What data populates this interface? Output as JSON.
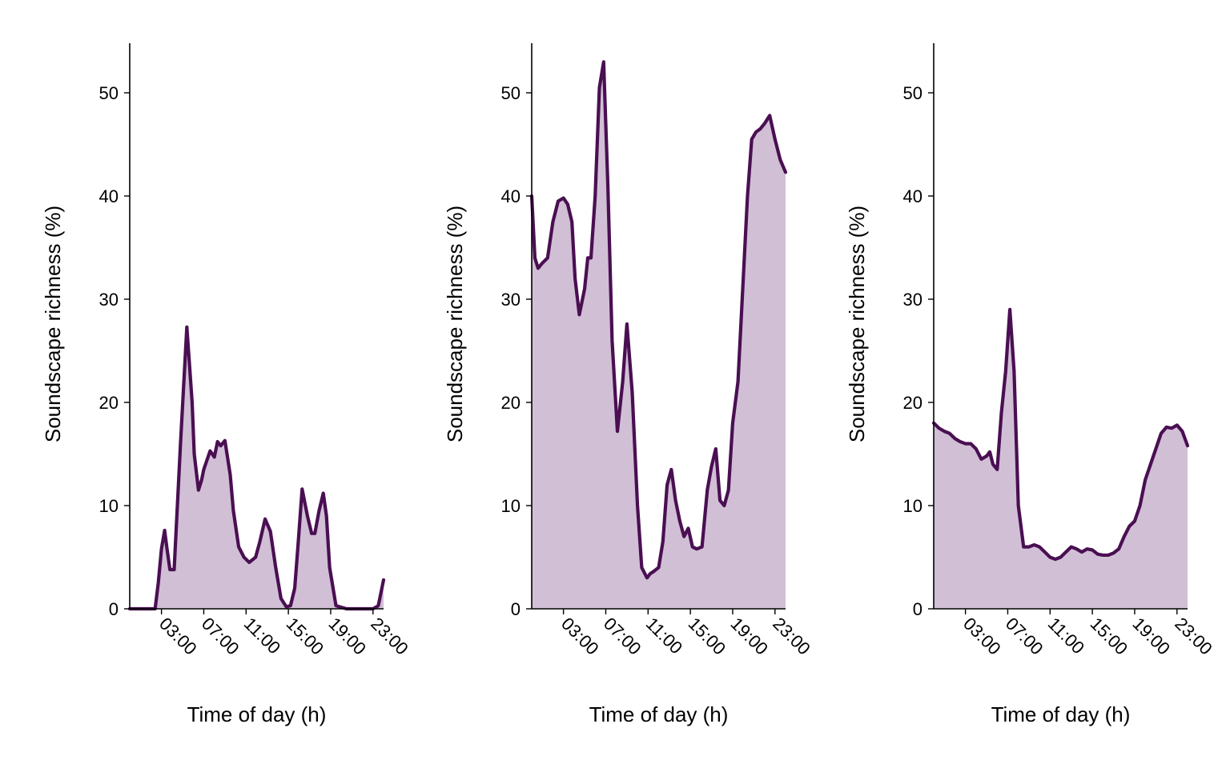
{
  "colors": {
    "line": "#4a0f52",
    "fill": "#d1bfd6",
    "axis": "#000000",
    "background": "#ffffff"
  },
  "chart_data": [
    {
      "type": "area",
      "xlabel": "Time of day (h)",
      "ylabel": "Soundscape richness (%)",
      "x_unit": "hours",
      "xlim": [
        0,
        24
      ],
      "ylim": [
        0,
        55
      ],
      "x_ticks": [
        {
          "value": 3,
          "label": "03:00"
        },
        {
          "value": 7,
          "label": "07:00"
        },
        {
          "value": 11,
          "label": "11:00"
        },
        {
          "value": 15,
          "label": "15:00"
        },
        {
          "value": 19,
          "label": "19:00"
        },
        {
          "value": 23,
          "label": "23:00"
        }
      ],
      "y_ticks": [
        0,
        10,
        20,
        30,
        40,
        50
      ],
      "x": [
        0,
        1,
        2.4,
        2.7,
        3.0,
        3.3,
        3.5,
        3.8,
        4.2,
        4.8,
        5.4,
        5.9,
        6.1,
        6.5,
        6.8,
        7.0,
        7.6,
        8.0,
        8.3,
        8.6,
        9.0,
        9.5,
        9.8,
        10.3,
        10.8,
        11.3,
        11.9,
        12.3,
        12.8,
        13.3,
        13.8,
        14.3,
        14.8,
        15.2,
        15.6,
        15.9,
        16.3,
        16.8,
        17.2,
        17.5,
        17.9,
        18.3,
        18.6,
        18.9,
        19.5,
        20.5,
        21.5,
        22.5,
        23.0,
        23.5,
        24.0
      ],
      "values": [
        0,
        0,
        0,
        2.5,
        5.8,
        7.6,
        6.0,
        3.8,
        3.8,
        16.0,
        27.3,
        20.0,
        15.0,
        11.5,
        12.5,
        13.5,
        15.3,
        14.7,
        16.2,
        15.8,
        16.3,
        13.0,
        9.5,
        6.0,
        5.0,
        4.5,
        5.0,
        6.5,
        8.7,
        7.5,
        4.0,
        1.0,
        0.2,
        0.3,
        2.0,
        6.0,
        11.6,
        9.0,
        7.3,
        7.3,
        9.5,
        11.2,
        9.0,
        4.0,
        0.3,
        0,
        0,
        0,
        0,
        0.3,
        2.8
      ]
    },
    {
      "type": "area",
      "xlabel": "Time of day (h)",
      "ylabel": "Soundscape richness (%)",
      "x_unit": "hours",
      "xlim": [
        0,
        24
      ],
      "ylim": [
        0,
        55
      ],
      "x_ticks": [
        {
          "value": 3,
          "label": "03:00"
        },
        {
          "value": 7,
          "label": "07:00"
        },
        {
          "value": 11,
          "label": "11:00"
        },
        {
          "value": 15,
          "label": "15:00"
        },
        {
          "value": 19,
          "label": "19:00"
        },
        {
          "value": 23,
          "label": "23:00"
        }
      ],
      "y_ticks": [
        0,
        10,
        20,
        30,
        40,
        50
      ],
      "x": [
        0,
        0.3,
        0.6,
        1.0,
        1.5,
        2.0,
        2.5,
        3.0,
        3.4,
        3.8,
        4.1,
        4.5,
        5.0,
        5.3,
        5.6,
        6.0,
        6.4,
        6.8,
        7.2,
        7.6,
        8.1,
        8.6,
        9.0,
        9.5,
        10.0,
        10.4,
        10.9,
        11.2,
        11.5,
        12.0,
        12.4,
        12.8,
        13.2,
        13.6,
        14.0,
        14.4,
        14.8,
        15.2,
        15.6,
        16.1,
        16.6,
        17.0,
        17.4,
        17.8,
        18.2,
        18.6,
        19.0,
        19.5,
        20.0,
        20.4,
        20.8,
        21.2,
        21.6,
        22.0,
        22.5,
        23.0,
        23.5,
        24.0
      ],
      "values": [
        40,
        34,
        33,
        33.5,
        34,
        37.5,
        39.5,
        39.8,
        39.2,
        37.5,
        32,
        28.5,
        31.0,
        34.0,
        34.0,
        40.0,
        50.5,
        53.0,
        41.0,
        26.0,
        17.2,
        22.0,
        27.6,
        21.0,
        10.0,
        4.0,
        3.0,
        3.4,
        3.6,
        4.0,
        6.5,
        12.0,
        13.5,
        10.5,
        8.5,
        7.0,
        7.8,
        6.0,
        5.8,
        6.0,
        11.5,
        13.8,
        15.5,
        10.5,
        10.0,
        11.5,
        18.0,
        22.0,
        32.0,
        40.0,
        45.5,
        46.2,
        46.5,
        47.0,
        47.8,
        45.5,
        43.5,
        42.3
      ]
    },
    {
      "type": "area",
      "xlabel": "Time of day (h)",
      "ylabel": "Soundscape richness (%)",
      "x_unit": "hours",
      "xlim": [
        0,
        24
      ],
      "ylim": [
        0,
        55
      ],
      "x_ticks": [
        {
          "value": 3,
          "label": "03:00"
        },
        {
          "value": 7,
          "label": "07:00"
        },
        {
          "value": 11,
          "label": "11:00"
        },
        {
          "value": 15,
          "label": "15:00"
        },
        {
          "value": 19,
          "label": "19:00"
        },
        {
          "value": 23,
          "label": "23:00"
        }
      ],
      "y_ticks": [
        0,
        10,
        20,
        30,
        40,
        50
      ],
      "x": [
        0,
        0.5,
        1.0,
        1.5,
        2.0,
        2.5,
        3.0,
        3.5,
        4.0,
        4.5,
        5.0,
        5.3,
        5.6,
        6.0,
        6.4,
        6.8,
        7.2,
        7.6,
        8.0,
        8.5,
        9.0,
        9.5,
        10.0,
        10.5,
        11.0,
        11.5,
        12.0,
        12.5,
        13.0,
        13.5,
        14.0,
        14.5,
        15.0,
        15.5,
        16.0,
        16.5,
        17.0,
        17.5,
        18.0,
        18.5,
        19.0,
        19.5,
        20.0,
        20.5,
        21.0,
        21.5,
        22.0,
        22.5,
        23.0,
        23.5,
        24.0
      ],
      "values": [
        18,
        17.5,
        17.2,
        17.0,
        16.5,
        16.2,
        16.0,
        16.0,
        15.5,
        14.5,
        14.8,
        15.2,
        14.0,
        13.5,
        19.0,
        23.0,
        29.0,
        23.0,
        10.0,
        6.0,
        6.0,
        6.2,
        6.0,
        5.5,
        5.0,
        4.8,
        5.0,
        5.5,
        6.0,
        5.8,
        5.5,
        5.8,
        5.7,
        5.3,
        5.2,
        5.2,
        5.4,
        5.8,
        7.0,
        8.0,
        8.5,
        10.0,
        12.5,
        14.0,
        15.5,
        17.0,
        17.6,
        17.5,
        17.8,
        17.2,
        15.8
      ]
    }
  ]
}
